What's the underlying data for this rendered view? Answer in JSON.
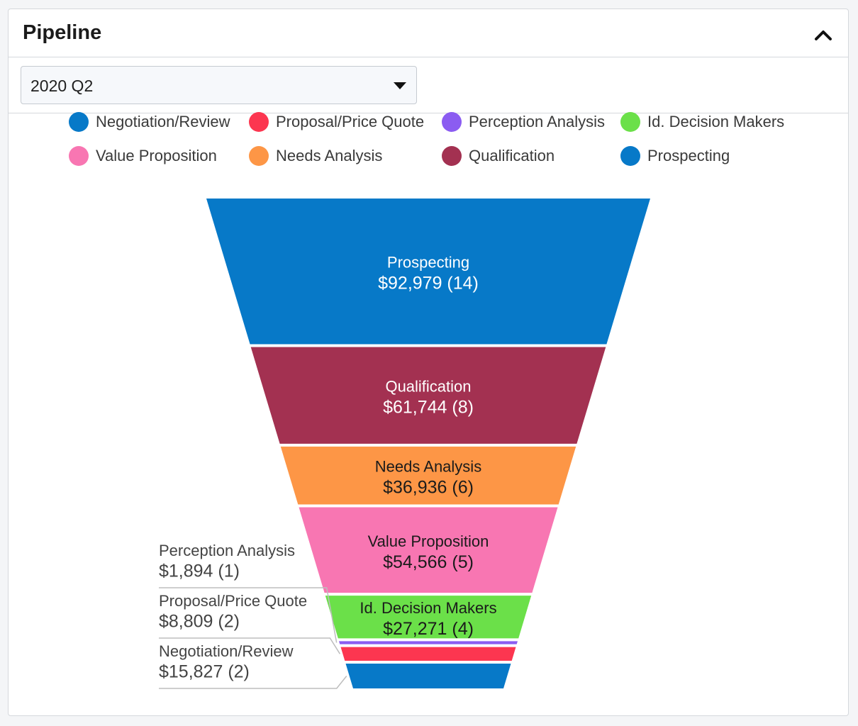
{
  "header": {
    "title": "Pipeline"
  },
  "filter": {
    "selected": "2020 Q2"
  },
  "legend": [
    {
      "label": "Negotiation/Review",
      "color": "#0779c8"
    },
    {
      "label": "Proposal/Price Quote",
      "color": "#fc3650"
    },
    {
      "label": "Perception Analysis",
      "color": "#8b5cf1"
    },
    {
      "label": "Id. Decision Makers",
      "color": "#6be049"
    },
    {
      "label": "Value Proposition",
      "color": "#f876b2"
    },
    {
      "label": "Needs Analysis",
      "color": "#fd9646"
    },
    {
      "label": "Qualification",
      "color": "#a33151"
    },
    {
      "label": "Prospecting",
      "color": "#0779c8"
    }
  ],
  "chart_data": {
    "type": "funnel",
    "stages": [
      {
        "name": "Prospecting",
        "value": 92979,
        "count": 14,
        "label": "$92,979 (14)",
        "color": "#0779c8",
        "text_color": "#ffffff",
        "label_position": "inside"
      },
      {
        "name": "Qualification",
        "value": 61744,
        "count": 8,
        "label": "$61,744 (8)",
        "color": "#a33151",
        "text_color": "#ffffff",
        "label_position": "inside"
      },
      {
        "name": "Needs Analysis",
        "value": 36936,
        "count": 6,
        "label": "$36,936 (6)",
        "color": "#fd9646",
        "text_color": "#1b1b1b",
        "label_position": "inside"
      },
      {
        "name": "Value Proposition",
        "value": 54566,
        "count": 5,
        "label": "$54,566 (5)",
        "color": "#f876b2",
        "text_color": "#1b1b1b",
        "label_position": "inside"
      },
      {
        "name": "Id. Decision Makers",
        "value": 27271,
        "count": 4,
        "label": "$27,271 (4)",
        "color": "#6be049",
        "text_color": "#1b1b1b",
        "label_position": "inside"
      },
      {
        "name": "Perception Analysis",
        "value": 1894,
        "count": 1,
        "label": "$1,894 (1)",
        "color": "#8b5cf1",
        "text_color": "#444444",
        "label_position": "outside"
      },
      {
        "name": "Proposal/Price Quote",
        "value": 8809,
        "count": 2,
        "label": "$8,809 (2)",
        "color": "#fc3650",
        "text_color": "#444444",
        "label_position": "outside"
      },
      {
        "name": "Negotiation/Review",
        "value": 15827,
        "count": 2,
        "label": "$15,827 (2)",
        "color": "#0779c8",
        "text_color": "#444444",
        "label_position": "outside"
      }
    ]
  }
}
